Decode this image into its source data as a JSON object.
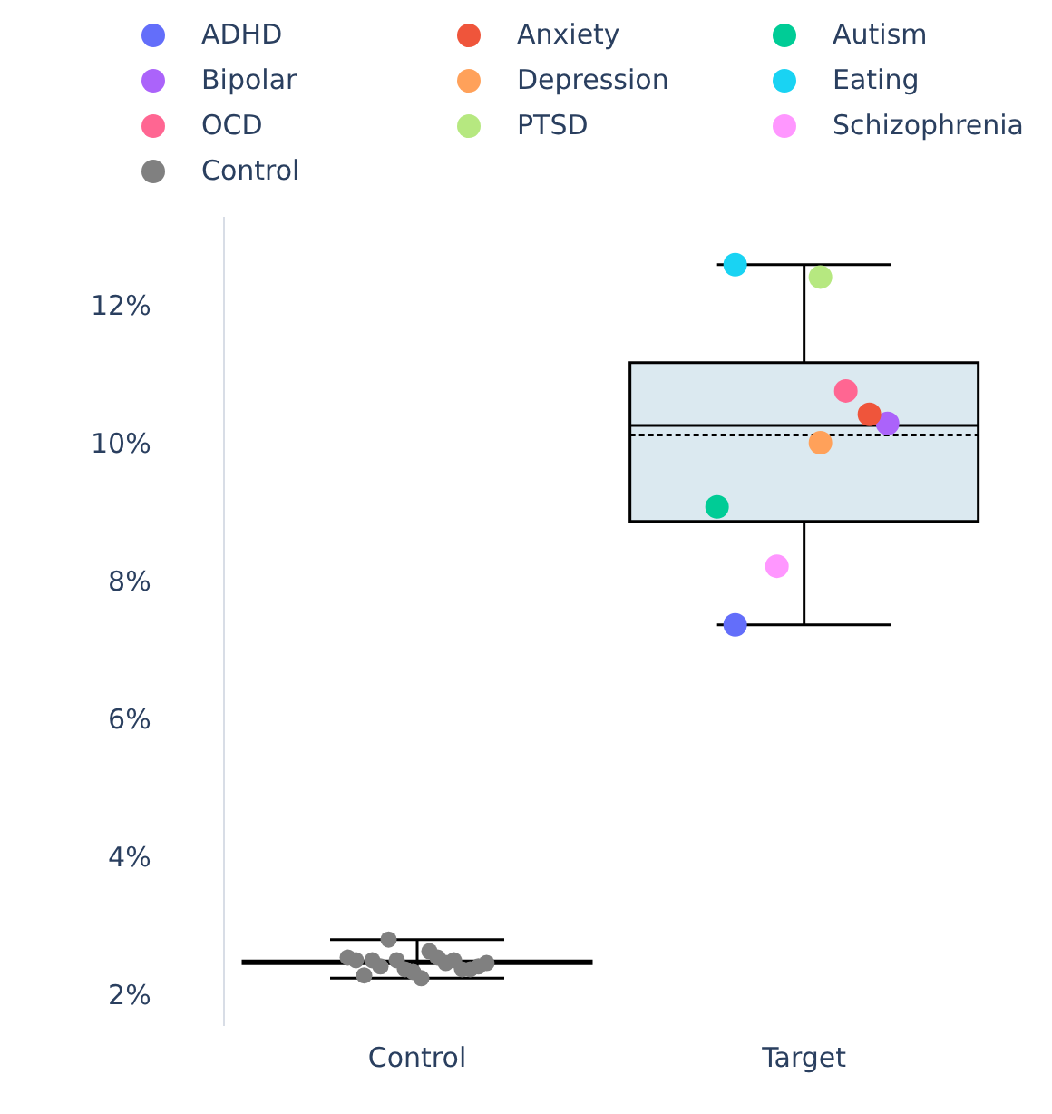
{
  "chart_data": {
    "type": "box",
    "categories": [
      "Control",
      "Target"
    ],
    "ylim": [
      1.6,
      13.3
    ],
    "yticks": [
      {
        "value": 2,
        "label": "2%"
      },
      {
        "value": 4,
        "label": "4%"
      },
      {
        "value": 6,
        "label": "6%"
      },
      {
        "value": 8,
        "label": "8%"
      },
      {
        "value": 10,
        "label": "10%"
      },
      {
        "value": 12,
        "label": "12%"
      }
    ],
    "grid": false,
    "legend": "top",
    "marker": "circle",
    "series": [
      {
        "type": "box",
        "color": "#000000",
        "colors": [
          "#000000",
          "#dbe9f0"
        ],
        "boxes": [
          {
            "low": 2.28,
            "q1": 2.49,
            "median": 2.51,
            "q3": 2.53,
            "high": 2.84
          },
          {
            "low": 7.4,
            "q1": 8.9,
            "median": 10.29,
            "q3": 11.2,
            "high": 12.62,
            "mean": 10.15
          }
        ]
      },
      {
        "type": "scatter",
        "name": "ADHD",
        "color": "#636efa",
        "x": [
          "Target"
        ],
        "values": [
          7.4
        ]
      },
      {
        "type": "scatter",
        "name": "Anxiety",
        "color": "#ef553b",
        "x": [
          "Target"
        ],
        "values": [
          10.45
        ]
      },
      {
        "type": "scatter",
        "name": "Autism",
        "color": "#00cc96",
        "x": [
          "Target"
        ],
        "values": [
          9.11
        ]
      },
      {
        "type": "scatter",
        "name": "Bipolar",
        "color": "#ab63fa",
        "x": [
          "Target"
        ],
        "values": [
          10.32
        ]
      },
      {
        "type": "scatter",
        "name": "Depression",
        "color": "#ffa15a",
        "x": [
          "Target"
        ],
        "values": [
          10.04
        ]
      },
      {
        "type": "scatter",
        "name": "Eating",
        "color": "#19d3f3",
        "x": [
          "Target"
        ],
        "values": [
          12.62
        ]
      },
      {
        "type": "scatter",
        "name": "OCD",
        "color": "#ff6692",
        "x": [
          "Target"
        ],
        "values": [
          10.79
        ]
      },
      {
        "type": "scatter",
        "name": "PTSD",
        "color": "#b6e880",
        "x": [
          "Target"
        ],
        "values": [
          12.44
        ]
      },
      {
        "type": "scatter",
        "name": "Schizophrenia",
        "color": "#ff97ff",
        "x": [
          "Target"
        ],
        "values": [
          8.25
        ]
      },
      {
        "type": "scatter",
        "name": "Control",
        "color": "#808080",
        "x": [
          "Control",
          "Control",
          "Control",
          "Control",
          "Control",
          "Control",
          "Control",
          "Control",
          "Control",
          "Control",
          "Control",
          "Control",
          "Control",
          "Control",
          "Control",
          "Control",
          "Control",
          "Control"
        ],
        "values": [
          2.58,
          2.54,
          2.32,
          2.54,
          2.45,
          2.84,
          2.54,
          2.41,
          2.37,
          2.28,
          2.67,
          2.58,
          2.5,
          2.54,
          2.41,
          2.41,
          2.45,
          2.5
        ]
      }
    ]
  }
}
